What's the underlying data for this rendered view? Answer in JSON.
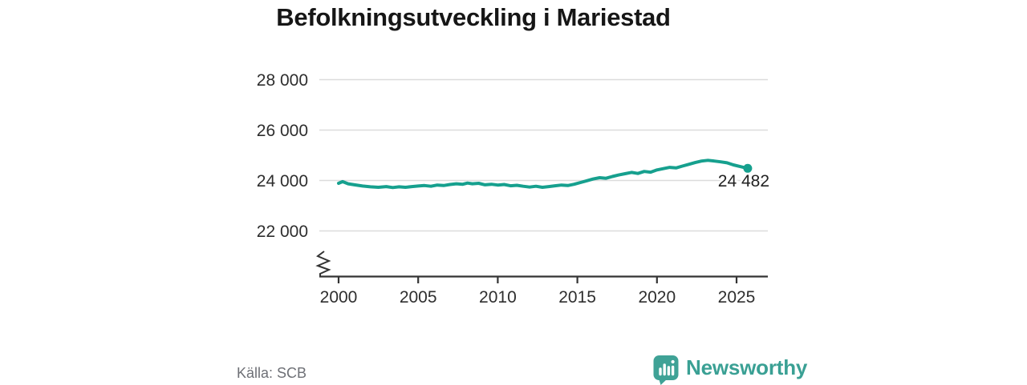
{
  "title": "Befolkningsutveckling i Mariestad",
  "footer": {
    "source": "Källa: SCB",
    "brand": "Newsworthy"
  },
  "colors": {
    "line": "#16a08e",
    "grid": "#dcdcdc",
    "axis": "#333333",
    "title_text": "#161616",
    "tick_text": "#2e2e2e",
    "source_text": "#6e7076",
    "brand_icon": "#3fa296",
    "brand_text": "#3aa094"
  },
  "chart_data": {
    "type": "line",
    "title": "Befolkningsutveckling i Mariestad",
    "series_name": "Befolkning",
    "source": "SCB",
    "grid": "horizontal",
    "axis_break": true,
    "xlim": [
      2000,
      2025.7
    ],
    "ylim": [
      21500,
      28600
    ],
    "x_ticks": [
      2000,
      2005,
      2010,
      2015,
      2020,
      2025
    ],
    "x_tick_labels": [
      "2000",
      "2005",
      "2010",
      "2015",
      "2020",
      "2025"
    ],
    "y_ticks": [
      28000,
      26000,
      24000,
      22000
    ],
    "y_tick_labels": [
      "28 000",
      "26 000",
      "24 000",
      "22 000"
    ],
    "end_label": "24 482",
    "end_value": 24482,
    "line_color": "#16a08e",
    "x": [
      2000.0,
      2000.25,
      2000.6,
      2001.0,
      2001.5,
      2002.0,
      2002.5,
      2003.0,
      2003.4,
      2003.8,
      2004.2,
      2004.6,
      2005.0,
      2005.4,
      2005.8,
      2006.2,
      2006.6,
      2007.0,
      2007.4,
      2007.8,
      2008.1,
      2008.4,
      2008.8,
      2009.2,
      2009.6,
      2010.0,
      2010.4,
      2010.8,
      2011.2,
      2011.6,
      2012.0,
      2012.4,
      2012.8,
      2013.2,
      2013.6,
      2014.0,
      2014.4,
      2014.8,
      2015.2,
      2015.6,
      2016.0,
      2016.4,
      2016.8,
      2017.2,
      2017.6,
      2018.0,
      2018.4,
      2018.8,
      2019.2,
      2019.6,
      2020.0,
      2020.4,
      2020.8,
      2021.2,
      2021.6,
      2022.0,
      2022.4,
      2022.8,
      2023.2,
      2023.6,
      2024.0,
      2024.4,
      2024.8,
      2025.2,
      2025.7
    ],
    "y": [
      23890,
      23955,
      23870,
      23830,
      23780,
      23750,
      23730,
      23760,
      23720,
      23750,
      23730,
      23760,
      23780,
      23800,
      23770,
      23820,
      23800,
      23840,
      23870,
      23850,
      23900,
      23870,
      23890,
      23830,
      23850,
      23820,
      23840,
      23790,
      23810,
      23770,
      23740,
      23770,
      23730,
      23760,
      23790,
      23820,
      23800,
      23850,
      23920,
      23990,
      24060,
      24110,
      24090,
      24160,
      24220,
      24270,
      24320,
      24280,
      24360,
      24330,
      24420,
      24470,
      24520,
      24500,
      24570,
      24640,
      24710,
      24770,
      24800,
      24770,
      24740,
      24700,
      24620,
      24560,
      24482
    ]
  }
}
